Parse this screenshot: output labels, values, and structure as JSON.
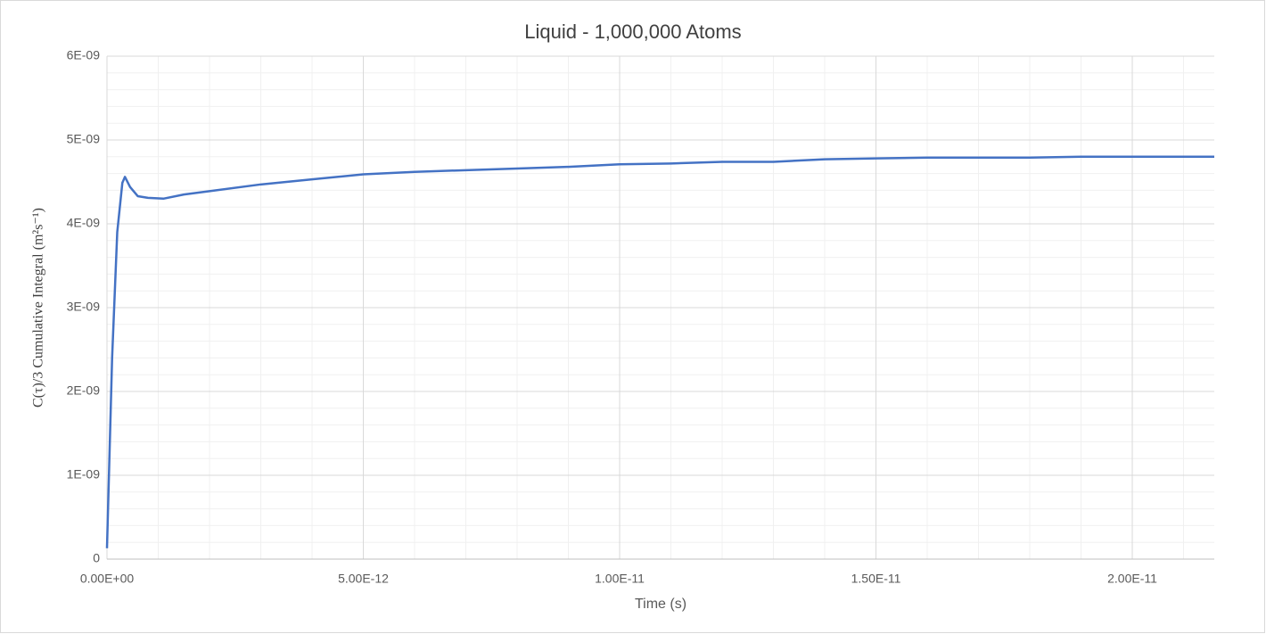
{
  "chart_data": {
    "type": "line",
    "title": "Liquid - 1,000,000 Atoms",
    "x_label": "Time (s)",
    "y_label": "C(τ)/3 Cumulative Integral  (m²s⁻¹)",
    "x": [
      0,
      1e-13,
      2e-13,
      3e-13,
      3.5e-13,
      4.5e-13,
      6e-13,
      8e-13,
      1.1e-12,
      1.5e-12,
      2e-12,
      3e-12,
      4e-12,
      5e-12,
      6e-12,
      7e-12,
      8e-12,
      9e-12,
      1e-11,
      1.1e-11,
      1.2e-11,
      1.3e-11,
      1.4e-11,
      1.5e-11,
      1.6e-11,
      1.7e-11,
      1.8e-11,
      1.9e-11,
      2e-11,
      2.16e-11
    ],
    "series": [
      {
        "name": "C(τ)/3",
        "color": "#4472c4",
        "values": [
          1.3e-10,
          2.4e-09,
          3.9e-09,
          4.49e-09,
          4.56e-09,
          4.44e-09,
          4.33e-09,
          4.31e-09,
          4.3e-09,
          4.35e-09,
          4.39e-09,
          4.47e-09,
          4.53e-09,
          4.59e-09,
          4.62e-09,
          4.64e-09,
          4.66e-09,
          4.68e-09,
          4.71e-09,
          4.72e-09,
          4.74e-09,
          4.74e-09,
          4.77e-09,
          4.78e-09,
          4.79e-09,
          4.79e-09,
          4.79e-09,
          4.8e-09,
          4.8e-09,
          4.8e-09
        ]
      }
    ],
    "xlim": [
      0,
      2.16e-11
    ],
    "ylim": [
      0,
      6e-09
    ],
    "xticks": [
      {
        "value": 0,
        "label": "0.00E+00"
      },
      {
        "value": 5e-12,
        "label": "5.00E-12"
      },
      {
        "value": 1e-11,
        "label": "1.00E-11"
      },
      {
        "value": 1.5e-11,
        "label": "1.50E-11"
      },
      {
        "value": 2e-11,
        "label": "2.00E-11"
      }
    ],
    "yticks": [
      0,
      {
        "value": 1e-09,
        "label": "1E-09"
      },
      {
        "value": 2e-09,
        "label": "2E-09"
      },
      {
        "value": 3e-09,
        "label": "3E-09"
      },
      {
        "value": 4e-09,
        "label": "4E-09"
      },
      {
        "value": 5e-09,
        "label": "5E-09"
      },
      {
        "value": 6e-09,
        "label": "6E-09"
      }
    ],
    "grid": true,
    "minor_grid": true
  }
}
